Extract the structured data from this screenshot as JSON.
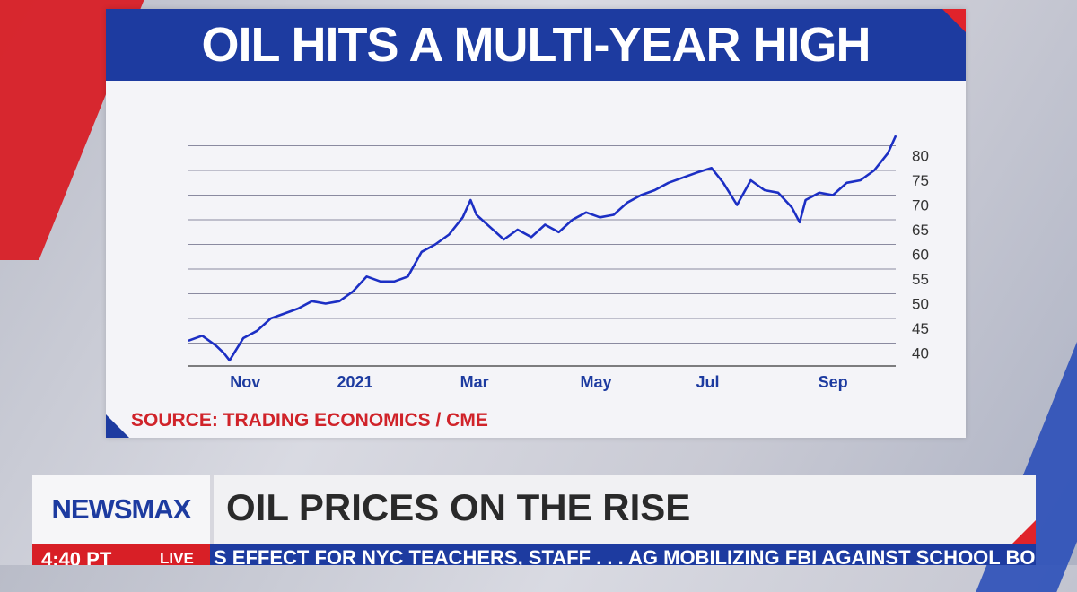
{
  "chart_title": "OIL HITS A MULTI-YEAR HIGH",
  "source": "SOURCE: TRADING ECONOMICS / CME",
  "lower_third": {
    "logo": "NEWSMAX",
    "headline": "OIL PRICES ON THE RISE"
  },
  "ticker": {
    "time": "4:40 PT",
    "live": "LIVE",
    "text": "S EFFECT FOR NYC TEACHERS, STAFF . . .     AG MOBILIZING FBI AGAINST SCHOOL BOAR"
  },
  "colors": {
    "brand_blue": "#1d3ba0",
    "accent_red": "#d81f26",
    "line": "#1c2fc4"
  },
  "chart_data": {
    "type": "line",
    "title": "OIL HITS A MULTI-YEAR HIGH",
    "xlabel": "",
    "ylabel": "",
    "x_ticks": [
      "Nov",
      "2021",
      "Mar",
      "May",
      "Jul",
      "Sep"
    ],
    "y_ticks": [
      40,
      45,
      50,
      55,
      60,
      65,
      70,
      75,
      80
    ],
    "ylim": [
      35,
      84
    ],
    "grid": true,
    "x": [
      "2020-10-12",
      "2020-10-19",
      "2020-10-26",
      "2020-10-30",
      "2020-11-02",
      "2020-11-09",
      "2020-11-16",
      "2020-11-23",
      "2020-11-30",
      "2020-12-07",
      "2020-12-14",
      "2020-12-21",
      "2020-12-28",
      "2021-01-04",
      "2021-01-11",
      "2021-01-18",
      "2021-01-25",
      "2021-02-01",
      "2021-02-08",
      "2021-02-15",
      "2021-02-22",
      "2021-03-01",
      "2021-03-05",
      "2021-03-08",
      "2021-03-15",
      "2021-03-22",
      "2021-03-29",
      "2021-04-05",
      "2021-04-12",
      "2021-04-19",
      "2021-04-26",
      "2021-05-03",
      "2021-05-10",
      "2021-05-17",
      "2021-05-24",
      "2021-05-31",
      "2021-06-07",
      "2021-06-14",
      "2021-06-21",
      "2021-06-28",
      "2021-07-06",
      "2021-07-12",
      "2021-07-19",
      "2021-07-26",
      "2021-08-02",
      "2021-08-09",
      "2021-08-16",
      "2021-08-20",
      "2021-08-23",
      "2021-08-30",
      "2021-09-06",
      "2021-09-13",
      "2021-09-20",
      "2021-09-27",
      "2021-10-04",
      "2021-10-08"
    ],
    "series": [
      {
        "values": [
          40.5,
          41.5,
          39.5,
          38.0,
          36.5,
          41.0,
          42.5,
          45.0,
          46.0,
          47.0,
          48.5,
          48.0,
          48.5,
          50.5,
          53.5,
          52.5,
          52.5,
          53.5,
          58.5,
          60.0,
          62.0,
          65.5,
          69.0,
          66.0,
          63.5,
          61.0,
          63.0,
          61.5,
          64.0,
          62.5,
          65.0,
          66.5,
          65.5,
          66.0,
          68.5,
          70.0,
          71.0,
          72.5,
          73.5,
          74.5,
          75.5,
          72.5,
          68.0,
          73.0,
          71.0,
          70.5,
          67.5,
          64.5,
          69.0,
          70.5,
          70.0,
          72.5,
          73.0,
          75.0,
          78.5,
          82.0
        ]
      }
    ]
  }
}
